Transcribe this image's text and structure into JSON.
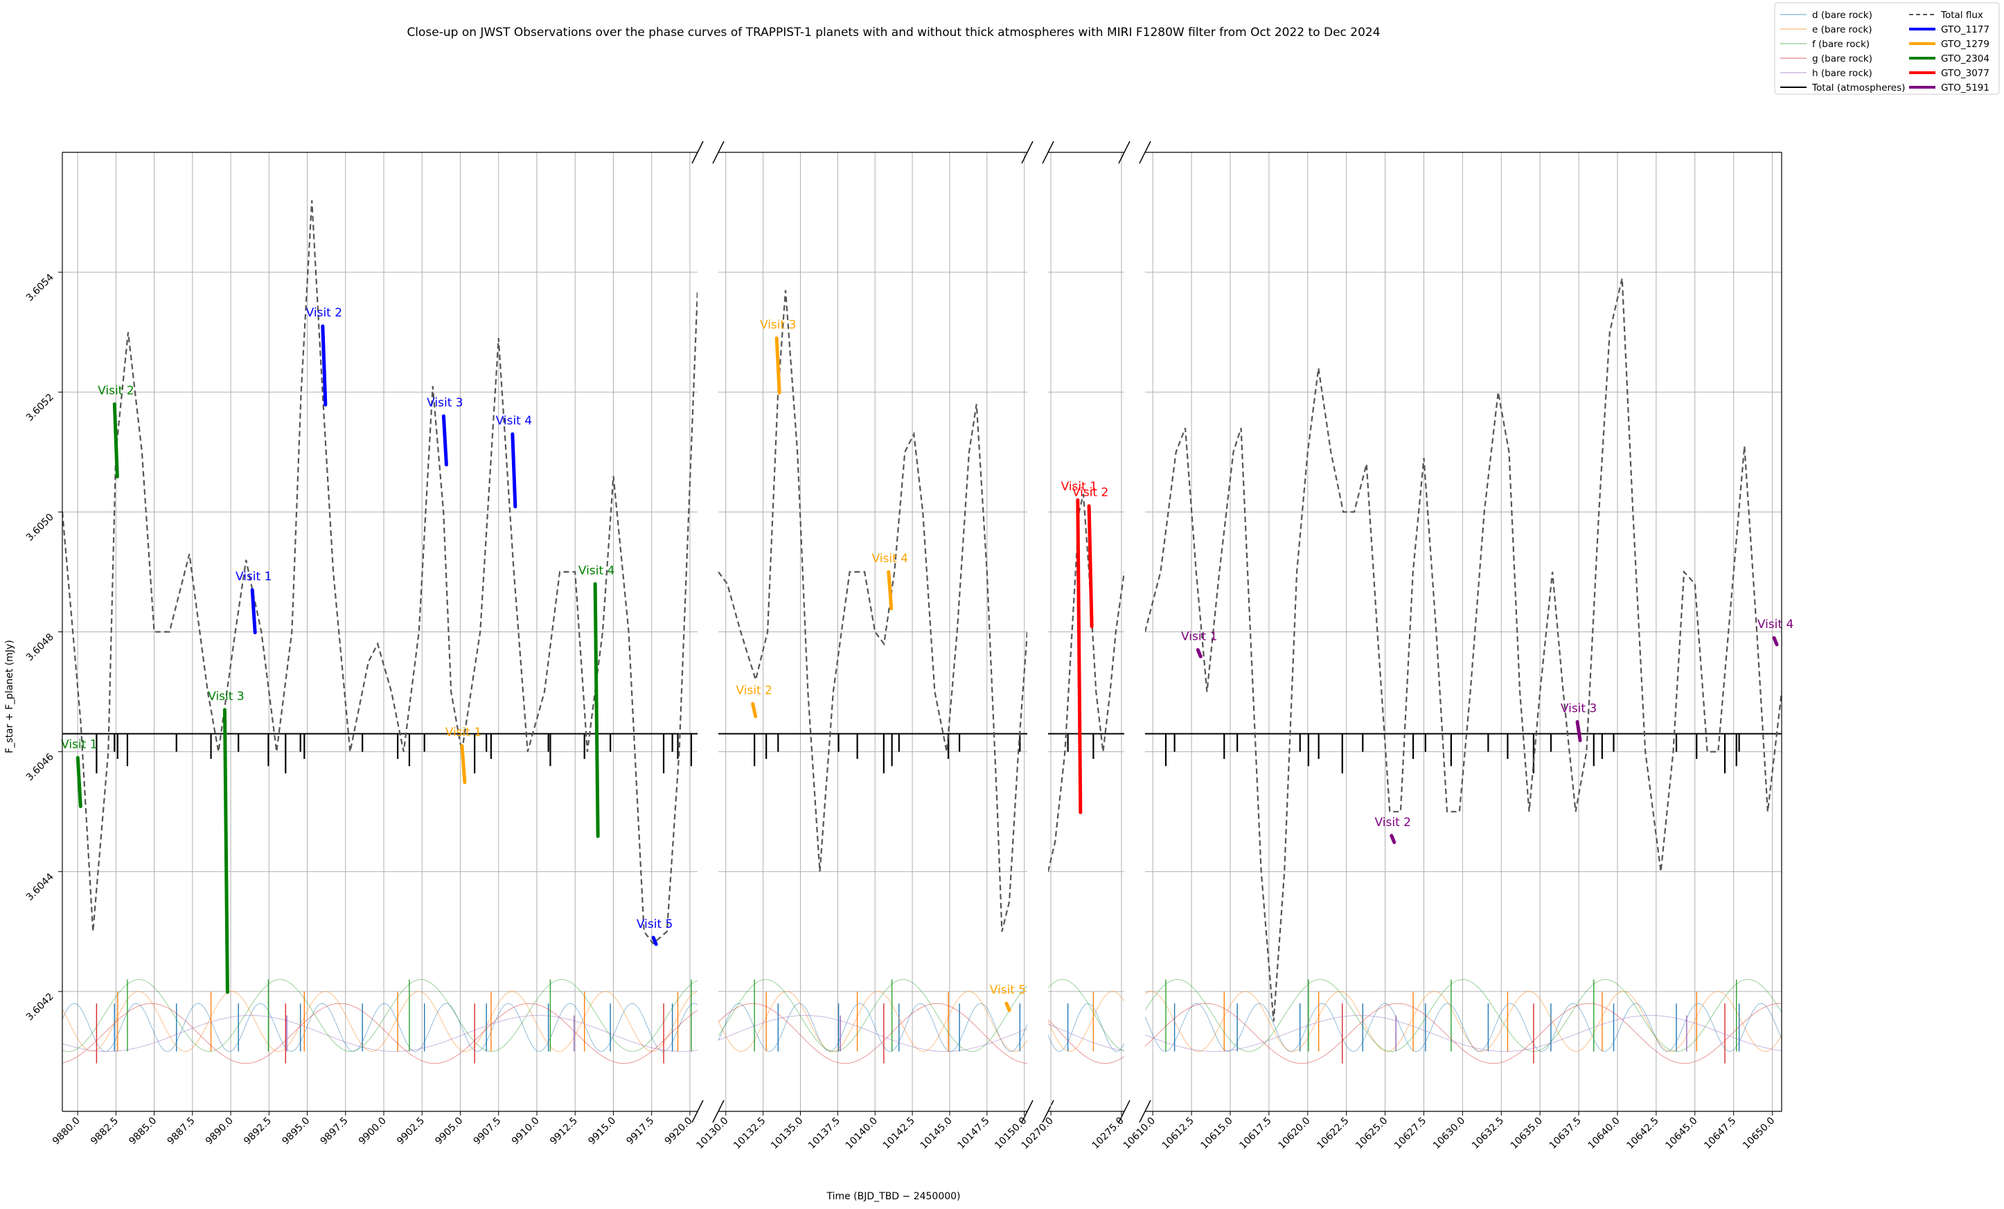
{
  "chart_data": {
    "type": "line",
    "title": "Close-up on JWST Observations over the phase curves of TRAPPIST-1 planets with and without thick atmospheres with MIRI F1280W filter from Oct 2022 to Dec 2024",
    "xlabel": "Time (BJD_TBD − 2450000)",
    "ylabel": "F_star + F_planet (mJy)",
    "ylim": [
      3.604,
      3.6056
    ],
    "y_ticks": [
      3.6042,
      3.6044,
      3.6046,
      3.6048,
      3.605,
      3.6052,
      3.6054
    ],
    "y_tick_labels": [
      "3.6042",
      "3.6044",
      "3.6046",
      "3.6048",
      "3.6050",
      "3.6052",
      "3.6054"
    ],
    "grid": true,
    "broken_x_axis": true,
    "panels": [
      {
        "xlim": [
          9879,
          9920.5
        ],
        "x_ticks": [
          9880.0,
          9882.5,
          9885.0,
          9887.5,
          9890.0,
          9892.5,
          9895.0,
          9897.5,
          9900.0,
          9902.5,
          9905.0,
          9907.5,
          9910.0,
          9912.5,
          9915.0,
          9917.5,
          9920.0
        ]
      },
      {
        "xlim": [
          10129.5,
          10150.2
        ],
        "x_ticks": [
          10130.0,
          10132.5,
          10135.0,
          10137.5,
          10140.0,
          10142.5,
          10145.0,
          10147.5,
          10150.0
        ]
      },
      {
        "xlim": [
          10269.8,
          10275.2
        ],
        "x_ticks": [
          10270.0,
          10275.0
        ]
      },
      {
        "xlim": [
          10609.5,
          10650.6
        ],
        "x_ticks": [
          10610.0,
          10612.5,
          10615.0,
          10617.5,
          10620.0,
          10622.5,
          10625.0,
          10627.5,
          10630.0,
          10632.5,
          10635.0,
          10637.5,
          10640.0,
          10642.5,
          10645.0,
          10647.5,
          10650.0
        ]
      }
    ],
    "legend": {
      "placement": "upper-right",
      "entries": [
        {
          "label": "d (bare rock)",
          "color": "#1f77b4",
          "style": "thin"
        },
        {
          "label": "e (bare rock)",
          "color": "#ff7f0e",
          "style": "thin"
        },
        {
          "label": "f (bare rock)",
          "color": "#2ca02c",
          "style": "thin"
        },
        {
          "label": "g (bare rock)",
          "color": "#d62728",
          "style": "thin"
        },
        {
          "label": "h (bare rock)",
          "color": "#9467bd",
          "style": "thin"
        },
        {
          "label": "Total (atmospheres)",
          "color": "#000000",
          "style": "solid"
        },
        {
          "label": "Total flux",
          "color": "#555555",
          "style": "dashed"
        },
        {
          "label": "GTO_1177",
          "color": "#0000ff",
          "style": "thick"
        },
        {
          "label": "GTO_1279",
          "color": "#ffa500",
          "style": "thick"
        },
        {
          "label": "GTO_2304",
          "color": "#008000",
          "style": "thick"
        },
        {
          "label": "GTO_3077",
          "color": "#ff0000",
          "style": "thick"
        },
        {
          "label": "GTO_5191",
          "color": "#800080",
          "style": "thick"
        }
      ]
    },
    "atmosphere_level": 3.60463,
    "series": [
      {
        "name": "Total flux",
        "color": "#555555",
        "style": "dashed",
        "points": [
          [
            9879.0,
            3.605
          ],
          [
            9880.2,
            3.60465
          ],
          [
            9881.0,
            3.6043
          ],
          [
            9882.0,
            3.6046
          ],
          [
            9882.5,
            3.6051
          ],
          [
            9883.3,
            3.6053
          ],
          [
            9884.2,
            3.6051
          ],
          [
            9885.0,
            3.6048
          ],
          [
            9886.0,
            3.6048
          ],
          [
            9887.3,
            3.60493
          ],
          [
            9888.5,
            3.6047
          ],
          [
            9889.2,
            3.6046
          ],
          [
            9890.3,
            3.6048
          ],
          [
            9891.0,
            3.60492
          ],
          [
            9892.0,
            3.6048
          ],
          [
            9893.0,
            3.6046
          ],
          [
            9894.0,
            3.6048
          ],
          [
            9894.6,
            3.6052
          ],
          [
            9895.3,
            3.60552
          ],
          [
            9896.0,
            3.6052
          ],
          [
            9896.7,
            3.6049
          ],
          [
            9897.8,
            3.6046
          ],
          [
            9899.0,
            3.60475
          ],
          [
            9899.6,
            3.60478
          ],
          [
            9900.5,
            3.6047
          ],
          [
            9901.3,
            3.6046
          ],
          [
            9902.3,
            3.6048
          ],
          [
            9903.2,
            3.60521
          ],
          [
            9903.9,
            3.605
          ],
          [
            9904.4,
            3.6047
          ],
          [
            9905.1,
            3.6046
          ],
          [
            9906.3,
            3.6048
          ],
          [
            9907.5,
            3.60529
          ],
          [
            9908.5,
            3.6049
          ],
          [
            9909.4,
            3.6046
          ],
          [
            9910.5,
            3.6047
          ],
          [
            9911.5,
            3.6049
          ],
          [
            9912.5,
            3.6049
          ],
          [
            9913.3,
            3.6046
          ],
          [
            9914.3,
            3.6048
          ],
          [
            9915.0,
            3.60506
          ],
          [
            9916.0,
            3.6048
          ],
          [
            9917.0,
            3.6043
          ],
          [
            9917.6,
            3.60428
          ],
          [
            9918.5,
            3.6043
          ],
          [
            9919.3,
            3.6046
          ],
          [
            9920.5,
            3.60537
          ]
        ]
      },
      {
        "name": "Total flux",
        "color": "#555555",
        "style": "dashed",
        "points": [
          [
            10129.5,
            3.6049
          ],
          [
            10130.1,
            3.60488
          ],
          [
            10131.0,
            3.6048
          ],
          [
            10132.0,
            3.60472
          ],
          [
            10132.8,
            3.6048
          ],
          [
            10133.5,
            3.6052
          ],
          [
            10134.0,
            3.60537
          ],
          [
            10134.8,
            3.6051
          ],
          [
            10135.5,
            3.6047
          ],
          [
            10136.3,
            3.6044
          ],
          [
            10137.2,
            3.6047
          ],
          [
            10138.3,
            3.6049
          ],
          [
            10139.3,
            3.6049
          ],
          [
            10140.0,
            3.6048
          ],
          [
            10140.6,
            3.60478
          ],
          [
            10141.3,
            3.6049
          ],
          [
            10142.0,
            3.6051
          ],
          [
            10142.6,
            3.60513
          ],
          [
            10143.2,
            3.605
          ],
          [
            10144.0,
            3.6047
          ],
          [
            10144.8,
            3.6046
          ],
          [
            10145.5,
            3.6048
          ],
          [
            10146.3,
            3.6051
          ],
          [
            10146.8,
            3.60518
          ],
          [
            10147.5,
            3.6049
          ],
          [
            10148.2,
            3.6045
          ],
          [
            10148.5,
            3.6043
          ],
          [
            10149.0,
            3.60435
          ],
          [
            10149.6,
            3.6046
          ],
          [
            10150.2,
            3.6048
          ]
        ]
      },
      {
        "name": "Total flux",
        "color": "#555555",
        "style": "dashed",
        "points": [
          [
            10269.8,
            3.6044
          ],
          [
            10270.3,
            3.60445
          ],
          [
            10271.0,
            3.6046
          ],
          [
            10271.5,
            3.6048
          ],
          [
            10272.0,
            3.605
          ],
          [
            10272.3,
            3.60503
          ],
          [
            10272.7,
            3.6049
          ],
          [
            10273.2,
            3.6047
          ],
          [
            10273.7,
            3.6046
          ],
          [
            10274.2,
            3.6047
          ],
          [
            10274.6,
            3.6048
          ],
          [
            10275.2,
            3.6049
          ]
        ]
      },
      {
        "name": "Total flux",
        "color": "#555555",
        "style": "dashed",
        "points": [
          [
            10609.5,
            3.6048
          ],
          [
            10610.5,
            3.6049
          ],
          [
            10611.5,
            3.6051
          ],
          [
            10612.1,
            3.60514
          ],
          [
            10612.8,
            3.6049
          ],
          [
            10613.5,
            3.6047
          ],
          [
            10614.3,
            3.6049
          ],
          [
            10615.2,
            3.6051
          ],
          [
            10615.7,
            3.60514
          ],
          [
            10616.3,
            3.6048
          ],
          [
            10617.0,
            3.6044
          ],
          [
            10617.8,
            3.60415
          ],
          [
            10618.5,
            3.6044
          ],
          [
            10619.3,
            3.6049
          ],
          [
            10620.0,
            3.6051
          ],
          [
            10620.7,
            3.60524
          ],
          [
            10621.5,
            3.6051
          ],
          [
            10622.3,
            3.605
          ],
          [
            10623.0,
            3.605
          ],
          [
            10623.8,
            3.60508
          ],
          [
            10624.5,
            3.6048
          ],
          [
            10625.3,
            3.6045
          ],
          [
            10626.0,
            3.6045
          ],
          [
            10626.8,
            3.6049
          ],
          [
            10627.5,
            3.60509
          ],
          [
            10628.3,
            3.6048
          ],
          [
            10629.0,
            3.6045
          ],
          [
            10629.8,
            3.6045
          ],
          [
            10630.5,
            3.6047
          ],
          [
            10631.4,
            3.605
          ],
          [
            10632.3,
            3.6052
          ],
          [
            10633.0,
            3.6051
          ],
          [
            10633.7,
            3.6047
          ],
          [
            10634.3,
            3.6045
          ],
          [
            10635.0,
            3.6047
          ],
          [
            10635.8,
            3.6049
          ],
          [
            10636.5,
            3.6047
          ],
          [
            10637.3,
            3.6045
          ],
          [
            10638.0,
            3.6046
          ],
          [
            10638.8,
            3.605
          ],
          [
            10639.5,
            3.6053
          ],
          [
            10640.3,
            3.60539
          ],
          [
            10641.0,
            3.605
          ],
          [
            10641.8,
            3.6046
          ],
          [
            10642.8,
            3.6044
          ],
          [
            10643.6,
            3.6046
          ],
          [
            10644.3,
            3.6049
          ],
          [
            10645.0,
            3.60488
          ],
          [
            10645.8,
            3.6046
          ],
          [
            10646.5,
            3.6046
          ],
          [
            10647.5,
            3.6049
          ],
          [
            10648.2,
            3.60511
          ],
          [
            10649.0,
            3.6048
          ],
          [
            10649.7,
            3.6045
          ],
          [
            10650.6,
            3.6047
          ]
        ]
      }
    ],
    "observations": [
      {
        "program": "GTO_2304",
        "label": "Visit 1",
        "color": "#008000",
        "x": 9880.1,
        "y_top": 3.60459,
        "y_bottom": 3.60451
      },
      {
        "program": "GTO_2304",
        "label": "Visit 2",
        "color": "#008000",
        "x": 9882.5,
        "y_top": 3.60518,
        "y_bottom": 3.60506
      },
      {
        "program": "GTO_2304",
        "label": "Visit 3",
        "color": "#008000",
        "x": 9889.7,
        "y_top": 3.60467,
        "y_bottom": 3.6042
      },
      {
        "program": "GTO_2304",
        "label": "Visit 4",
        "color": "#008000",
        "x": 9913.9,
        "y_top": 3.60488,
        "y_bottom": 3.60446
      },
      {
        "program": "GTO_1177",
        "label": "Visit 1",
        "color": "#0000ff",
        "x": 9891.5,
        "y_top": 3.60487,
        "y_bottom": 3.6048
      },
      {
        "program": "GTO_1177",
        "label": "Visit 2",
        "color": "#0000ff",
        "x": 9896.1,
        "y_top": 3.60531,
        "y_bottom": 3.60518
      },
      {
        "program": "GTO_1177",
        "label": "Visit 3",
        "color": "#0000ff",
        "x": 9904.0,
        "y_top": 3.60516,
        "y_bottom": 3.60508
      },
      {
        "program": "GTO_1177",
        "label": "Visit 4",
        "color": "#0000ff",
        "x": 9908.5,
        "y_top": 3.60513,
        "y_bottom": 3.60501
      },
      {
        "program": "GTO_1177",
        "label": "Visit 5",
        "color": "#0000ff",
        "x": 9917.7,
        "y_top": 3.60429,
        "y_bottom": 3.60428
      },
      {
        "program": "GTO_1279",
        "label": "Visit 1",
        "color": "#ffa500",
        "x": 9905.2,
        "y_top": 3.60461,
        "y_bottom": 3.60455
      },
      {
        "program": "GTO_1279",
        "label": "Visit 2",
        "color": "#ffa500",
        "x": 10131.9,
        "y_top": 3.60468,
        "y_bottom": 3.60466
      },
      {
        "program": "GTO_1279",
        "label": "Visit 3",
        "color": "#ffa500",
        "x": 10133.5,
        "y_top": 3.60529,
        "y_bottom": 3.6052
      },
      {
        "program": "GTO_1279",
        "label": "Visit 4",
        "color": "#ffa500",
        "x": 10141.0,
        "y_top": 3.6049,
        "y_bottom": 3.60484
      },
      {
        "program": "GTO_1279",
        "label": "Visit 5",
        "color": "#ffa500",
        "x": 10148.9,
        "y_top": 3.60418,
        "y_bottom": 3.60417
      },
      {
        "program": "GTO_3077",
        "label": "Visit 1",
        "color": "#ff0000",
        "x": 10272.0,
        "y_top": 3.60502,
        "y_bottom": 3.6045
      },
      {
        "program": "GTO_3077",
        "label": "Visit 2",
        "color": "#ff0000",
        "x": 10272.8,
        "y_top": 3.60501,
        "y_bottom": 3.60481
      },
      {
        "program": "GTO_5191",
        "label": "Visit 1",
        "color": "#800080",
        "x": 10613.0,
        "y_top": 3.60477,
        "y_bottom": 3.60476
      },
      {
        "program": "GTO_5191",
        "label": "Visit 2",
        "color": "#800080",
        "x": 10625.5,
        "y_top": 3.60446,
        "y_bottom": 3.60445
      },
      {
        "program": "GTO_5191",
        "label": "Visit 3",
        "color": "#800080",
        "x": 10637.5,
        "y_top": 3.60465,
        "y_bottom": 3.60462
      },
      {
        "program": "GTO_5191",
        "label": "Visit 4",
        "color": "#800080",
        "x": 10650.2,
        "y_top": 3.60479,
        "y_bottom": 3.60478
      }
    ]
  }
}
